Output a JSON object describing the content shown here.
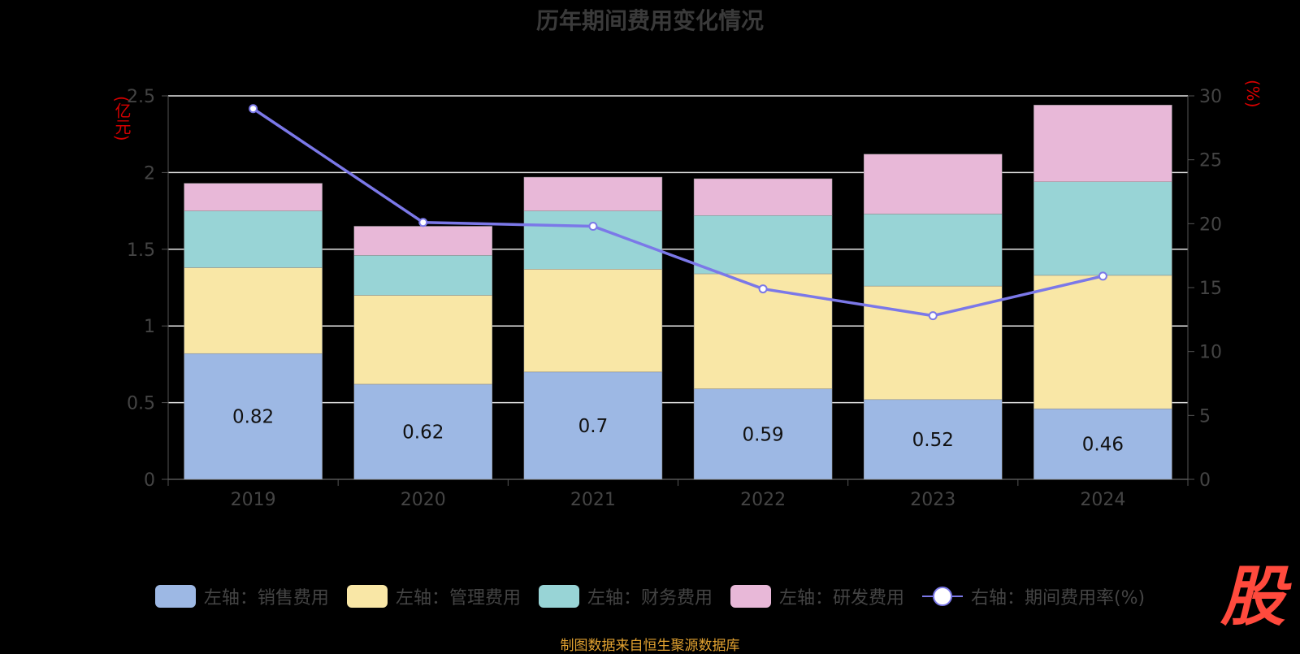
{
  "title": "历年期间费用变化情况",
  "left_unit": "(亿元)",
  "right_unit": "(%)",
  "source": "制图数据来自恒生聚源数据库",
  "logo_text": "股",
  "chart_data": {
    "type": "bar",
    "stacked": true,
    "categories": [
      "2019",
      "2020",
      "2021",
      "2022",
      "2023",
      "2024"
    ],
    "series": [
      {
        "name": "左轴：销售费用",
        "axis": "left",
        "color": "#9db8e4",
        "values": [
          0.82,
          0.62,
          0.7,
          0.59,
          0.52,
          0.46
        ],
        "labels": [
          "0.82",
          "0.62",
          "0.7",
          "0.59",
          "0.52",
          "0.46"
        ]
      },
      {
        "name": "左轴：管理费用",
        "axis": "left",
        "color": "#f9e7a6",
        "values": [
          0.56,
          0.58,
          0.67,
          0.75,
          0.74,
          0.87
        ]
      },
      {
        "name": "左轴：财务费用",
        "axis": "left",
        "color": "#98d4d6",
        "values": [
          0.37,
          0.26,
          0.38,
          0.38,
          0.47,
          0.61
        ]
      },
      {
        "name": "左轴：研发费用",
        "axis": "left",
        "color": "#e8b8d8",
        "values": [
          0.18,
          0.19,
          0.22,
          0.24,
          0.39,
          0.5
        ]
      },
      {
        "name": "右轴：期间费用率(%)",
        "axis": "right",
        "type": "line",
        "color": "#7b78e8",
        "values": [
          29.0,
          20.1,
          19.8,
          14.9,
          12.8,
          15.9
        ]
      }
    ],
    "left_axis": {
      "min": 0,
      "max": 2.5,
      "ticks": [
        "0",
        "0.5",
        "1",
        "1.5",
        "2",
        "2.5"
      ]
    },
    "right_axis": {
      "min": 0,
      "max": 30,
      "ticks": [
        "0",
        "5",
        "10",
        "15",
        "20",
        "25",
        "30"
      ]
    },
    "grid": true,
    "legend_position": "bottom"
  }
}
